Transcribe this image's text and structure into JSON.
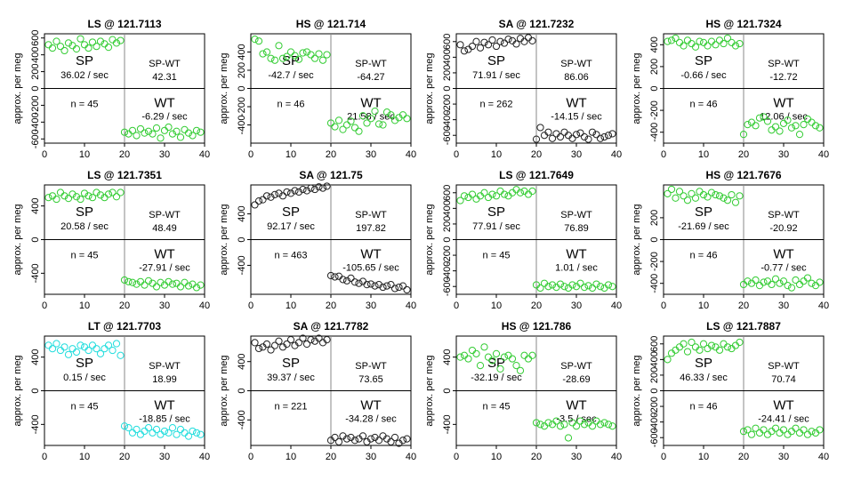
{
  "ylabel": "approx. per meg",
  "xlim": [
    0,
    40
  ],
  "colors": {
    "green": "#33cc33",
    "black": "#222222",
    "cyan": "#22dddd"
  },
  "chart_data": [
    {
      "type": "scatter",
      "title": "LS @ 121.7113",
      "color": "green",
      "ylim": [
        -650,
        650
      ],
      "yticks": [
        600,
        400,
        200,
        0,
        -200,
        -400,
        -600
      ],
      "xticks": [
        0,
        10,
        20,
        30,
        40
      ],
      "sp_label": "SP",
      "sp_rate": "36.02 / sec",
      "spwt_label": "SP-WT",
      "spwt_value": "42.31",
      "wt_label": "WT",
      "wt_rate": "-6.29 / sec",
      "n_label": "n = 45",
      "sp_x": [
        1,
        2,
        3,
        4,
        5,
        6,
        7,
        8,
        9,
        10,
        11,
        12,
        13,
        14,
        15,
        16,
        17,
        18,
        19
      ],
      "sp_y": [
        520,
        480,
        560,
        500,
        450,
        540,
        510,
        470,
        590,
        520,
        480,
        550,
        500,
        560,
        530,
        490,
        580,
        540,
        570
      ],
      "wt_x": [
        20,
        21,
        22,
        23,
        24,
        25,
        26,
        27,
        28,
        29,
        30,
        31,
        32,
        33,
        34,
        35,
        36,
        37,
        38,
        39
      ],
      "wt_y": [
        -520,
        -540,
        -500,
        -560,
        -480,
        -530,
        -510,
        -540,
        -470,
        -590,
        -500,
        -460,
        -540,
        -510,
        -580,
        -490,
        -530,
        -560,
        -500,
        -520
      ]
    },
    {
      "type": "scatter",
      "title": "HS @ 121.714",
      "color": "green",
      "ylim": [
        -600,
        600
      ],
      "yticks": [
        400,
        200,
        0,
        -200,
        -400
      ],
      "xticks": [
        0,
        10,
        20,
        30,
        40
      ],
      "sp_label": "SP",
      "sp_rate": "-42.7 / sec",
      "spwt_label": "SP-WT",
      "spwt_value": "-64.27",
      "wt_label": "WT",
      "wt_rate": "21.58 / sec",
      "n_label": "n = 46",
      "sp_x": [
        1,
        2,
        3,
        4,
        5,
        6,
        7,
        8,
        9,
        10,
        11,
        12,
        13,
        14,
        15,
        16,
        17,
        18,
        19
      ],
      "sp_y": [
        540,
        520,
        380,
        400,
        330,
        310,
        470,
        330,
        350,
        400,
        360,
        320,
        390,
        400,
        370,
        330,
        380,
        310,
        370
      ],
      "wt_x": [
        20,
        21,
        22,
        23,
        24,
        25,
        26,
        27,
        28,
        29,
        30,
        31,
        32,
        33,
        34,
        35,
        36,
        37,
        38,
        39
      ],
      "wt_y": [
        -380,
        -420,
        -350,
        -450,
        -400,
        -360,
        -430,
        -470,
        -300,
        -380,
        -330,
        -250,
        -390,
        -400,
        -260,
        -290,
        -350,
        -320,
        -290,
        -330
      ]
    },
    {
      "type": "scatter",
      "title": "SA @ 121.7232",
      "color": "black",
      "ylim": [
        -700,
        700
      ],
      "yticks": [
        600,
        400,
        200,
        0,
        -200,
        -400,
        -600
      ],
      "xticks": [
        0,
        10,
        20,
        30,
        40
      ],
      "sp_label": "SP",
      "sp_rate": "71.91 / sec",
      "spwt_label": "SP-WT",
      "spwt_value": "86.06",
      "wt_label": "WT",
      "wt_rate": "-14.15 / sec",
      "n_label": "n = 262",
      "sp_x": [
        1,
        2,
        3,
        4,
        5,
        6,
        7,
        8,
        9,
        10,
        11,
        12,
        13,
        14,
        15,
        16,
        17,
        18,
        19
      ],
      "sp_y": [
        560,
        480,
        500,
        540,
        600,
        520,
        590,
        560,
        620,
        540,
        600,
        580,
        630,
        610,
        570,
        640,
        600,
        650,
        610
      ],
      "wt_x": [
        20,
        21,
        22,
        23,
        24,
        25,
        26,
        27,
        28,
        29,
        30,
        31,
        32,
        33,
        34,
        35,
        36,
        37,
        38,
        39
      ],
      "wt_y": [
        -650,
        -500,
        -600,
        -560,
        -640,
        -580,
        -620,
        -560,
        -600,
        -640,
        -590,
        -570,
        -620,
        -650,
        -560,
        -590,
        -640,
        -620,
        -600,
        -580
      ]
    },
    {
      "type": "scatter",
      "title": "HS @ 121.7324",
      "color": "green",
      "ylim": [
        -500,
        500
      ],
      "yticks": [
        400,
        200,
        0,
        -200,
        -400
      ],
      "xticks": [
        0,
        10,
        20,
        30,
        40
      ],
      "sp_label": "SP",
      "sp_rate": "-0.66 / sec",
      "spwt_label": "SP-WT",
      "spwt_value": "-12.72",
      "wt_label": "WT",
      "wt_rate": "12.06 / sec",
      "n_label": "n = 46",
      "sp_x": [
        1,
        2,
        3,
        4,
        5,
        6,
        7,
        8,
        9,
        10,
        11,
        12,
        13,
        14,
        15,
        16,
        17,
        18,
        19
      ],
      "sp_y": [
        430,
        440,
        460,
        420,
        390,
        440,
        410,
        380,
        430,
        420,
        390,
        430,
        400,
        440,
        410,
        460,
        420,
        390,
        410
      ],
      "wt_x": [
        20,
        21,
        22,
        23,
        24,
        25,
        26,
        27,
        28,
        29,
        30,
        31,
        32,
        33,
        34,
        35,
        36,
        37,
        38,
        39
      ],
      "wt_y": [
        -420,
        -330,
        -310,
        -340,
        -270,
        -260,
        -300,
        -380,
        -350,
        -390,
        -320,
        -290,
        -360,
        -340,
        -420,
        -330,
        -280,
        -310,
        -340,
        -360
      ]
    },
    {
      "type": "scatter",
      "title": "LS @ 121.7351",
      "color": "green",
      "ylim": [
        -650,
        650
      ],
      "yticks": [
        400,
        0,
        -400
      ],
      "xticks": [
        0,
        10,
        20,
        30,
        40
      ],
      "sp_label": "SP",
      "sp_rate": "20.58 / sec",
      "spwt_label": "SP-WT",
      "spwt_value": "48.49",
      "wt_label": "WT",
      "wt_rate": "-27.91 / sec",
      "n_label": "n = 45",
      "sp_x": [
        1,
        2,
        3,
        4,
        5,
        6,
        7,
        8,
        9,
        10,
        11,
        12,
        13,
        14,
        15,
        16,
        17,
        18,
        19
      ],
      "sp_y": [
        500,
        520,
        480,
        560,
        520,
        490,
        540,
        510,
        480,
        550,
        520,
        500,
        560,
        530,
        500,
        540,
        560,
        510,
        560
      ],
      "wt_x": [
        20,
        21,
        22,
        23,
        24,
        25,
        26,
        27,
        28,
        29,
        30,
        31,
        32,
        33,
        34,
        35,
        36,
        37,
        38,
        39
      ],
      "wt_y": [
        -480,
        -500,
        -510,
        -530,
        -500,
        -540,
        -490,
        -520,
        -560,
        -510,
        -540,
        -500,
        -530,
        -520,
        -560,
        -510,
        -550,
        -530,
        -570,
        -540
      ]
    },
    {
      "type": "scatter",
      "title": "SA @ 121.75",
      "color": "black",
      "ylim": [
        -850,
        850
      ],
      "yticks": [
        400,
        0,
        -400
      ],
      "xticks": [
        0,
        10,
        20,
        30,
        40
      ],
      "sp_label": "SP",
      "sp_rate": "92.17 / sec",
      "spwt_label": "SP-WT",
      "spwt_value": "197.82",
      "wt_label": "WT",
      "wt_rate": "-105.65 / sec",
      "n_label": "n = 463",
      "sp_x": [
        1,
        2,
        3,
        4,
        5,
        6,
        7,
        8,
        9,
        10,
        11,
        12,
        13,
        14,
        15,
        16,
        17,
        18,
        19
      ],
      "sp_y": [
        540,
        600,
        620,
        680,
        660,
        700,
        720,
        680,
        740,
        720,
        760,
        740,
        780,
        760,
        800,
        780,
        820,
        800,
        830
      ],
      "wt_x": [
        20,
        21,
        22,
        23,
        24,
        25,
        26,
        27,
        28,
        29,
        30,
        31,
        32,
        33,
        34,
        35,
        36,
        37,
        38,
        39
      ],
      "wt_y": [
        -560,
        -580,
        -570,
        -620,
        -640,
        -600,
        -660,
        -680,
        -650,
        -700,
        -690,
        -720,
        -700,
        -740,
        -720,
        -700,
        -760,
        -740,
        -720,
        -780
      ]
    },
    {
      "type": "scatter",
      "title": "LS @ 121.7649",
      "color": "green",
      "ylim": [
        -700,
        700
      ],
      "yticks": [
        600,
        400,
        200,
        0,
        -200,
        -400,
        -600
      ],
      "xticks": [
        0,
        10,
        20,
        30,
        40
      ],
      "sp_label": "SP",
      "sp_rate": "77.91 / sec",
      "spwt_label": "SP-WT",
      "spwt_value": "76.89",
      "wt_label": "WT",
      "wt_rate": "1.01 / sec",
      "n_label": "n = 45",
      "sp_x": [
        1,
        2,
        3,
        4,
        5,
        6,
        7,
        8,
        9,
        10,
        11,
        12,
        13,
        14,
        15,
        16,
        17,
        18,
        19
      ],
      "sp_y": [
        500,
        560,
        540,
        580,
        520,
        560,
        600,
        540,
        580,
        560,
        620,
        580,
        560,
        600,
        640,
        600,
        620,
        580,
        620
      ],
      "wt_x": [
        20,
        21,
        22,
        23,
        24,
        25,
        26,
        27,
        28,
        29,
        30,
        31,
        32,
        33,
        34,
        35,
        36,
        37,
        38,
        39
      ],
      "wt_y": [
        -580,
        -620,
        -560,
        -600,
        -580,
        -610,
        -570,
        -600,
        -620,
        -580,
        -600,
        -560,
        -610,
        -590,
        -620,
        -570,
        -600,
        -620,
        -580,
        -600
      ]
    },
    {
      "type": "scatter",
      "title": "HS @ 121.7676",
      "color": "green",
      "ylim": [
        -500,
        500
      ],
      "yticks": [
        200,
        0,
        -200,
        -400
      ],
      "xticks": [
        0,
        10,
        20,
        30,
        40
      ],
      "sp_label": "SP",
      "sp_rate": "-21.69 / sec",
      "spwt_label": "SP-WT",
      "spwt_value": "-20.92",
      "wt_label": "WT",
      "wt_rate": "-0.77 / sec",
      "n_label": "n = 46",
      "sp_x": [
        1,
        2,
        3,
        4,
        5,
        6,
        7,
        8,
        9,
        10,
        11,
        12,
        13,
        14,
        15,
        16,
        17,
        18,
        19
      ],
      "sp_y": [
        420,
        460,
        380,
        440,
        400,
        360,
        420,
        380,
        440,
        410,
        390,
        430,
        410,
        400,
        380,
        360,
        410,
        340,
        400
      ],
      "wt_x": [
        20,
        21,
        22,
        23,
        24,
        25,
        26,
        27,
        28,
        29,
        30,
        31,
        32,
        33,
        34,
        35,
        36,
        37,
        38,
        39
      ],
      "wt_y": [
        -410,
        -380,
        -400,
        -370,
        -420,
        -390,
        -380,
        -410,
        -360,
        -400,
        -380,
        -420,
        -440,
        -370,
        -410,
        -380,
        -350,
        -400,
        -420,
        -390
      ]
    },
    {
      "type": "scatter",
      "title": "LT @ 121.7703",
      "color": "cyan",
      "ylim": [
        -650,
        650
      ],
      "yticks": [
        400,
        0,
        -400
      ],
      "xticks": [
        0,
        10,
        20,
        30,
        40
      ],
      "sp_label": "SP",
      "sp_rate": "0.15 / sec",
      "spwt_label": "SP-WT",
      "spwt_value": "18.99",
      "wt_label": "WT",
      "wt_rate": "-18.85 / sec",
      "n_label": "n = 45",
      "sp_x": [
        1,
        2,
        3,
        4,
        5,
        6,
        7,
        8,
        9,
        10,
        11,
        12,
        13,
        14,
        15,
        16,
        17,
        18,
        19
      ],
      "sp_y": [
        540,
        500,
        560,
        480,
        520,
        430,
        500,
        460,
        540,
        520,
        480,
        540,
        500,
        440,
        500,
        540,
        480,
        560,
        420
      ],
      "wt_x": [
        20,
        21,
        22,
        23,
        24,
        25,
        26,
        27,
        28,
        29,
        30,
        31,
        32,
        33,
        34,
        35,
        36,
        37,
        38,
        39
      ],
      "wt_y": [
        -420,
        -440,
        -500,
        -460,
        -520,
        -480,
        -440,
        -500,
        -460,
        -520,
        -480,
        -500,
        -440,
        -520,
        -460,
        -500,
        -540,
        -480,
        -500,
        -520
      ]
    },
    {
      "type": "scatter",
      "title": "SA @ 121.7782",
      "color": "black",
      "ylim": [
        -750,
        750
      ],
      "yticks": [
        400,
        0,
        -400
      ],
      "xticks": [
        0,
        10,
        20,
        30,
        40
      ],
      "sp_label": "SP",
      "sp_rate": "39.37 / sec",
      "spwt_label": "SP-WT",
      "spwt_value": "73.65",
      "wt_label": "WT",
      "wt_rate": "-34.28 / sec",
      "n_label": "n = 221",
      "sp_x": [
        1,
        2,
        3,
        4,
        5,
        6,
        7,
        8,
        9,
        10,
        11,
        12,
        13,
        14,
        15,
        16,
        17,
        18,
        19
      ],
      "sp_y": [
        660,
        580,
        600,
        640,
        560,
        620,
        680,
        600,
        640,
        700,
        620,
        660,
        720,
        640,
        700,
        680,
        720,
        660,
        700
      ],
      "wt_x": [
        20,
        21,
        22,
        23,
        24,
        25,
        26,
        27,
        28,
        29,
        30,
        31,
        32,
        33,
        34,
        35,
        36,
        37,
        38,
        39
      ],
      "wt_y": [
        -680,
        -640,
        -700,
        -620,
        -660,
        -640,
        -680,
        -660,
        -620,
        -700,
        -660,
        -640,
        -680,
        -620,
        -660,
        -700,
        -640,
        -720,
        -680,
        -660
      ]
    },
    {
      "type": "scatter",
      "title": "HS @ 121.786",
      "color": "green",
      "ylim": [
        -650,
        650
      ],
      "yticks": [
        400,
        0,
        -400
      ],
      "xticks": [
        0,
        10,
        20,
        30,
        40
      ],
      "sp_label": "SP",
      "sp_rate": "-32.19 / sec",
      "spwt_label": "SP-WT",
      "spwt_value": "-28.69",
      "wt_label": "WT",
      "wt_rate": "-3.5 / sec",
      "n_label": "n = 45",
      "sp_x": [
        1,
        2,
        3,
        4,
        5,
        6,
        7,
        8,
        9,
        10,
        11,
        12,
        13,
        14,
        15,
        16,
        17,
        18,
        19
      ],
      "sp_y": [
        400,
        420,
        380,
        480,
        440,
        300,
        520,
        400,
        360,
        440,
        260,
        400,
        420,
        380,
        300,
        240,
        420,
        380,
        420
      ],
      "wt_x": [
        20,
        21,
        22,
        23,
        24,
        25,
        26,
        27,
        28,
        29,
        30,
        31,
        32,
        33,
        34,
        35,
        36,
        37,
        38,
        39
      ],
      "wt_y": [
        -380,
        -400,
        -420,
        -380,
        -400,
        -360,
        -420,
        -400,
        -560,
        -380,
        -420,
        -360,
        -400,
        -380,
        -420,
        -360,
        -400,
        -380,
        -400,
        -420
      ]
    },
    {
      "type": "scatter",
      "title": "LS @ 121.7887",
      "color": "green",
      "ylim": [
        -700,
        700
      ],
      "yticks": [
        600,
        400,
        200,
        0,
        -200,
        -400,
        -600
      ],
      "xticks": [
        0,
        10,
        20,
        30,
        40
      ],
      "sp_label": "SP",
      "sp_rate": "46.33 / sec",
      "spwt_label": "SP-WT",
      "spwt_value": "70.74",
      "wt_label": "WT",
      "wt_rate": "-24.41 / sec",
      "n_label": "n = 46",
      "sp_x": [
        1,
        2,
        3,
        4,
        5,
        6,
        7,
        8,
        9,
        10,
        11,
        12,
        13,
        14,
        15,
        16,
        17,
        18,
        19
      ],
      "sp_y": [
        400,
        480,
        520,
        560,
        600,
        500,
        620,
        560,
        520,
        600,
        540,
        580,
        560,
        520,
        600,
        560,
        540,
        580,
        620
      ],
      "wt_x": [
        20,
        21,
        22,
        23,
        24,
        25,
        26,
        27,
        28,
        29,
        30,
        31,
        32,
        33,
        34,
        35,
        36,
        37,
        38,
        39
      ],
      "wt_y": [
        -520,
        -500,
        -560,
        -480,
        -540,
        -500,
        -560,
        -520,
        -480,
        -540,
        -500,
        -560,
        -520,
        -480,
        -540,
        -500,
        -560,
        -520,
        -540,
        -500
      ]
    }
  ]
}
